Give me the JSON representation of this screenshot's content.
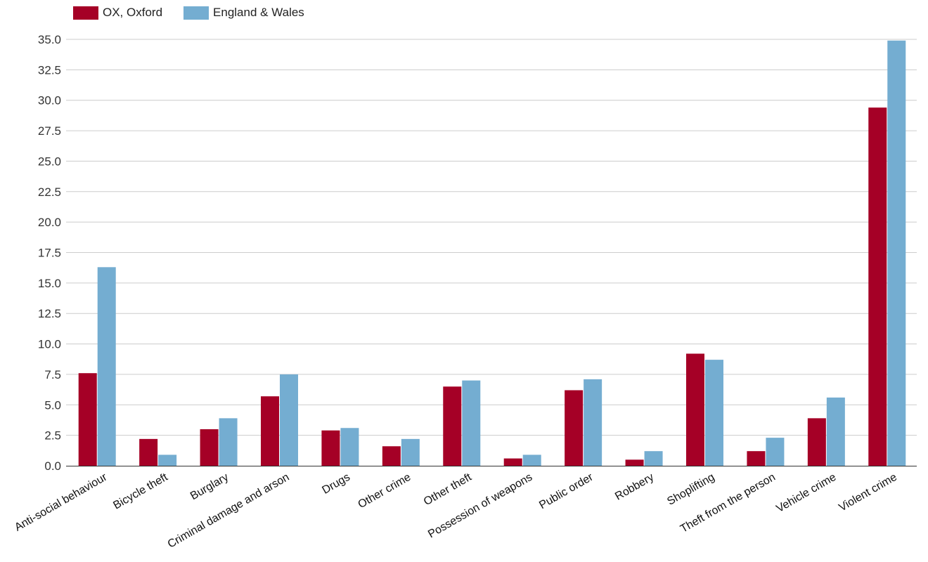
{
  "legend": {
    "items": [
      {
        "label": "OX, Oxford",
        "color": "#a50026"
      },
      {
        "label": "England & Wales",
        "color": "#74add1"
      }
    ]
  },
  "chart_data": {
    "type": "bar",
    "categories": [
      "Anti-social behaviour",
      "Bicycle theft",
      "Burglary",
      "Criminal damage and arson",
      "Drugs",
      "Other crime",
      "Other theft",
      "Possession of weapons",
      "Public order",
      "Robbery",
      "Shoplifting",
      "Theft from the person",
      "Vehicle crime",
      "Violent crime"
    ],
    "series": [
      {
        "name": "OX, Oxford",
        "color": "#a50026",
        "values": [
          7.6,
          2.2,
          3.0,
          5.7,
          2.9,
          1.6,
          6.5,
          0.6,
          6.2,
          0.5,
          9.2,
          1.2,
          3.9,
          29.4
        ]
      },
      {
        "name": "England & Wales",
        "color": "#74add1",
        "values": [
          16.3,
          0.9,
          3.9,
          7.5,
          3.1,
          2.2,
          7.0,
          0.9,
          7.1,
          1.2,
          8.7,
          2.3,
          5.6,
          34.9
        ]
      }
    ],
    "title": "",
    "xlabel": "",
    "ylabel": "",
    "ylim": [
      0,
      35
    ],
    "yticks": [
      "0.0",
      "2.5",
      "5.0",
      "7.5",
      "10.0",
      "12.5",
      "15.0",
      "17.5",
      "20.0",
      "22.5",
      "25.0",
      "27.5",
      "30.0",
      "32.5",
      "35.0"
    ],
    "grid": true,
    "legend_position": "top-left"
  }
}
